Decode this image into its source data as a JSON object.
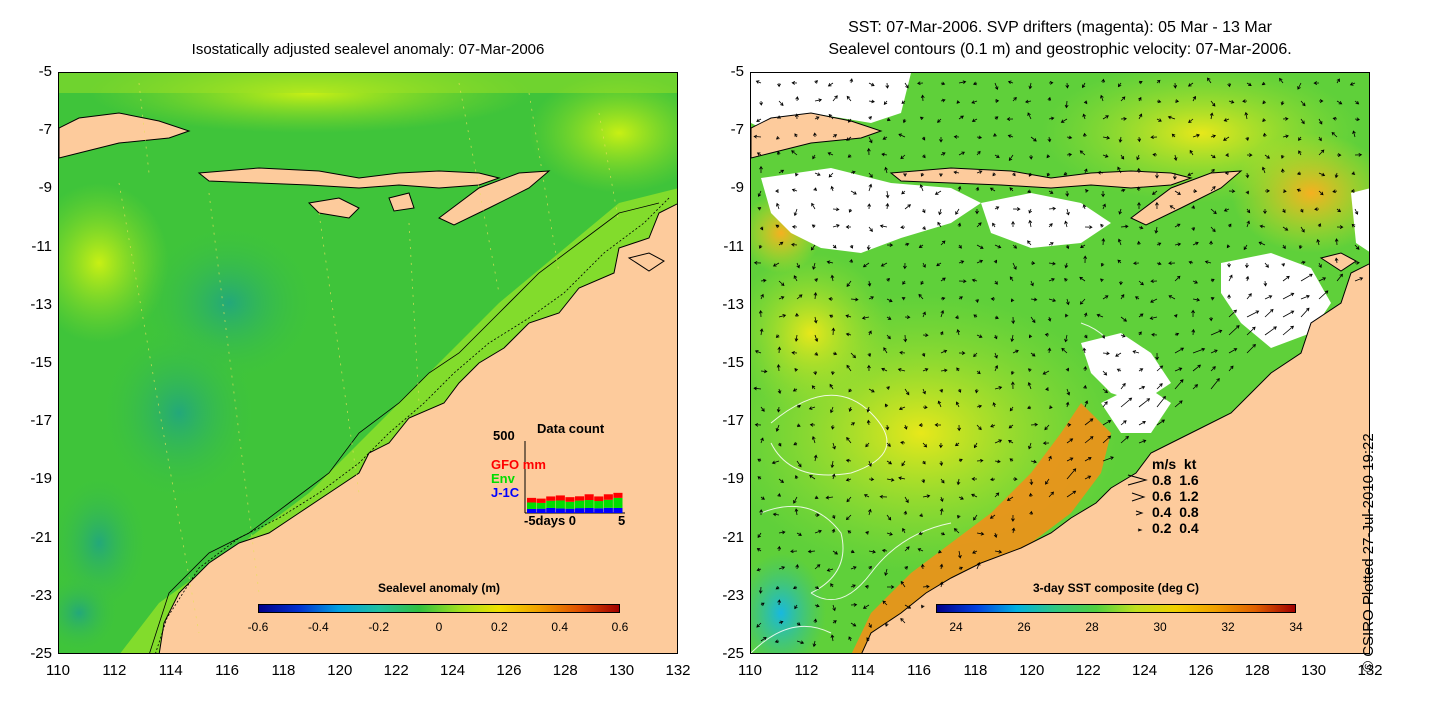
{
  "left_panel": {
    "title": "Isostatically adjusted sealevel anomaly: 07-Mar-2006",
    "colorbar": {
      "title": "Sealevel anomaly (m)",
      "ticks": [
        "-0.6",
        "-0.4",
        "-0.2",
        "0",
        "0.2",
        "0.4",
        "0.6"
      ]
    },
    "data_count": {
      "title": "Data count",
      "ymax_label": "500",
      "legend": [
        {
          "label": "GFO mm",
          "color": "#ff0000"
        },
        {
          "label": "Env",
          "color": "#00dd00"
        },
        {
          "label": "J-1C",
          "color": "#0000ff"
        }
      ],
      "x_label": "-5days 0",
      "x_end": "5",
      "bars": [
        {
          "j1c": 28,
          "env": 45,
          "gfo": 32
        },
        {
          "j1c": 30,
          "env": 40,
          "gfo": 30
        },
        {
          "j1c": 35,
          "env": 50,
          "gfo": 30
        },
        {
          "j1c": 32,
          "env": 55,
          "gfo": 35
        },
        {
          "j1c": 30,
          "env": 48,
          "gfo": 32
        },
        {
          "j1c": 34,
          "env": 52,
          "gfo": 30
        },
        {
          "j1c": 35,
          "env": 55,
          "gfo": 40
        },
        {
          "j1c": 33,
          "env": 50,
          "gfo": 32
        },
        {
          "j1c": 36,
          "env": 56,
          "gfo": 38
        },
        {
          "j1c": 35,
          "env": 70,
          "gfo": 35
        }
      ]
    }
  },
  "right_panel": {
    "title_line1": "SST: 07-Mar-2006. SVP drifters (magenta): 05 Mar - 13 Mar",
    "title_line2": "Sealevel contours (0.1 m) and geostrophic velocity: 07-Mar-2006.",
    "colorbar": {
      "title": "3-day SST composite (deg C)",
      "ticks": [
        "24",
        "26",
        "28",
        "30",
        "32",
        "34"
      ]
    },
    "velocity_legend": {
      "header": "m/s  kt",
      "rows": [
        "0.8  1.6",
        "0.6  1.2",
        "0.4  0.8",
        "0.2  0.4"
      ]
    }
  },
  "axes": {
    "y_ticks": [
      "-5",
      "-7",
      "-9",
      "-11",
      "-13",
      "-15",
      "-17",
      "-19",
      "-21",
      "-23",
      "-25"
    ],
    "x_ticks": [
      "110",
      "112",
      "114",
      "116",
      "118",
      "120",
      "122",
      "124",
      "126",
      "128",
      "130",
      "132"
    ]
  },
  "credit": "© CSIRO Plotted 27-Jul-2010 19:22",
  "colors": {
    "land": "#fdcb9c",
    "sla_ocean": "#3fc43a",
    "sla_high": "#b4ec1c",
    "sla_low": "#2aae72",
    "sst_ocean": "#5fd03a",
    "sst_warm": "#f0a818",
    "sst_hot": "#e8801a",
    "cloud": "#ffffff"
  }
}
